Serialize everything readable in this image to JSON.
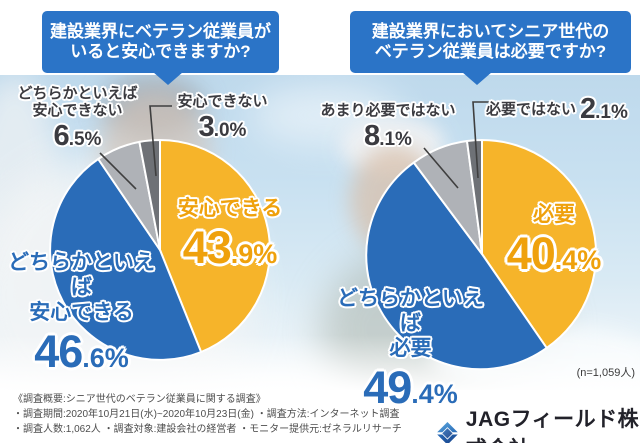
{
  "banners": {
    "left": {
      "line1": "建設業界にベテラン従業員が",
      "line2": "いると安心できますか?"
    },
    "right": {
      "line1": "建設業界においてシニア世代の",
      "line2": "ベテラン従業員は必要ですか?"
    }
  },
  "chart_data": [
    {
      "type": "pie",
      "title": "建設業界にベテラン従業員がいると安心できますか?",
      "labels": [
        "安心できる",
        "どちらかといえば安心できる",
        "どちらかといえば安心できない",
        "安心できない"
      ],
      "values": [
        43.9,
        46.6,
        6.5,
        3.0
      ],
      "unit": "%",
      "colors": [
        "#f6b42a",
        "#2a6cb8",
        "#afb2b7",
        "#6e7176"
      ],
      "start_angle_deg": 0,
      "direction": "clockwise"
    },
    {
      "type": "pie",
      "title": "建設業界においてシニア世代のベテラン従業員は必要ですか?",
      "labels": [
        "必要",
        "どちらかといえば必要",
        "あまり必要ではない",
        "必要ではない"
      ],
      "values": [
        40.4,
        49.4,
        8.1,
        2.1
      ],
      "unit": "%",
      "colors": [
        "#f6b42a",
        "#2a6cb8",
        "#afb2b7",
        "#6e7176"
      ],
      "start_angle_deg": 0,
      "direction": "clockwise",
      "n_note": "(n=1,059人)"
    }
  ],
  "callouts": {
    "left_somewhat_unsafe": {
      "line1": "どちらかといえば",
      "line2": "安心できない",
      "big": "6",
      "small": ".5%"
    },
    "left_unsafe": {
      "label": "安心できない",
      "big": "3",
      "small": ".0%"
    },
    "left_safe": {
      "label": "安心できる",
      "big": "43",
      "small": ".9%"
    },
    "left_somewhat_safe": {
      "line1": "どちらかといえば",
      "line2": "安心できる",
      "big": "46",
      "small": ".6%"
    },
    "right_not_really": {
      "label": "あまり必要ではない",
      "big": "8",
      "small": ".1%"
    },
    "right_not_needed": {
      "label": "必要ではない",
      "big": "2",
      "small": ".1%"
    },
    "right_needed": {
      "label": "必要",
      "big": "40",
      "small": ".4%"
    },
    "right_somewhat_needed": {
      "line1": "どちらかといえば",
      "line2": "必要",
      "big": "49",
      "small": ".4%"
    }
  },
  "footer": {
    "n_note": "(n=1,059人)",
    "overview_line1": "《調査概要:シニア世代のベテラン従業員に関する調査》",
    "overview_line2": "・調査期間:2020年10月21日(水)~2020年10月23日(金) ・調査方法:インターネット調査",
    "overview_line3": "・調査人数:1,062人 ・調査対象:建設会社の経営者 ・モニター提供元:ゼネラルリサーチ",
    "company_name": "JAGフィールド株式会社"
  }
}
